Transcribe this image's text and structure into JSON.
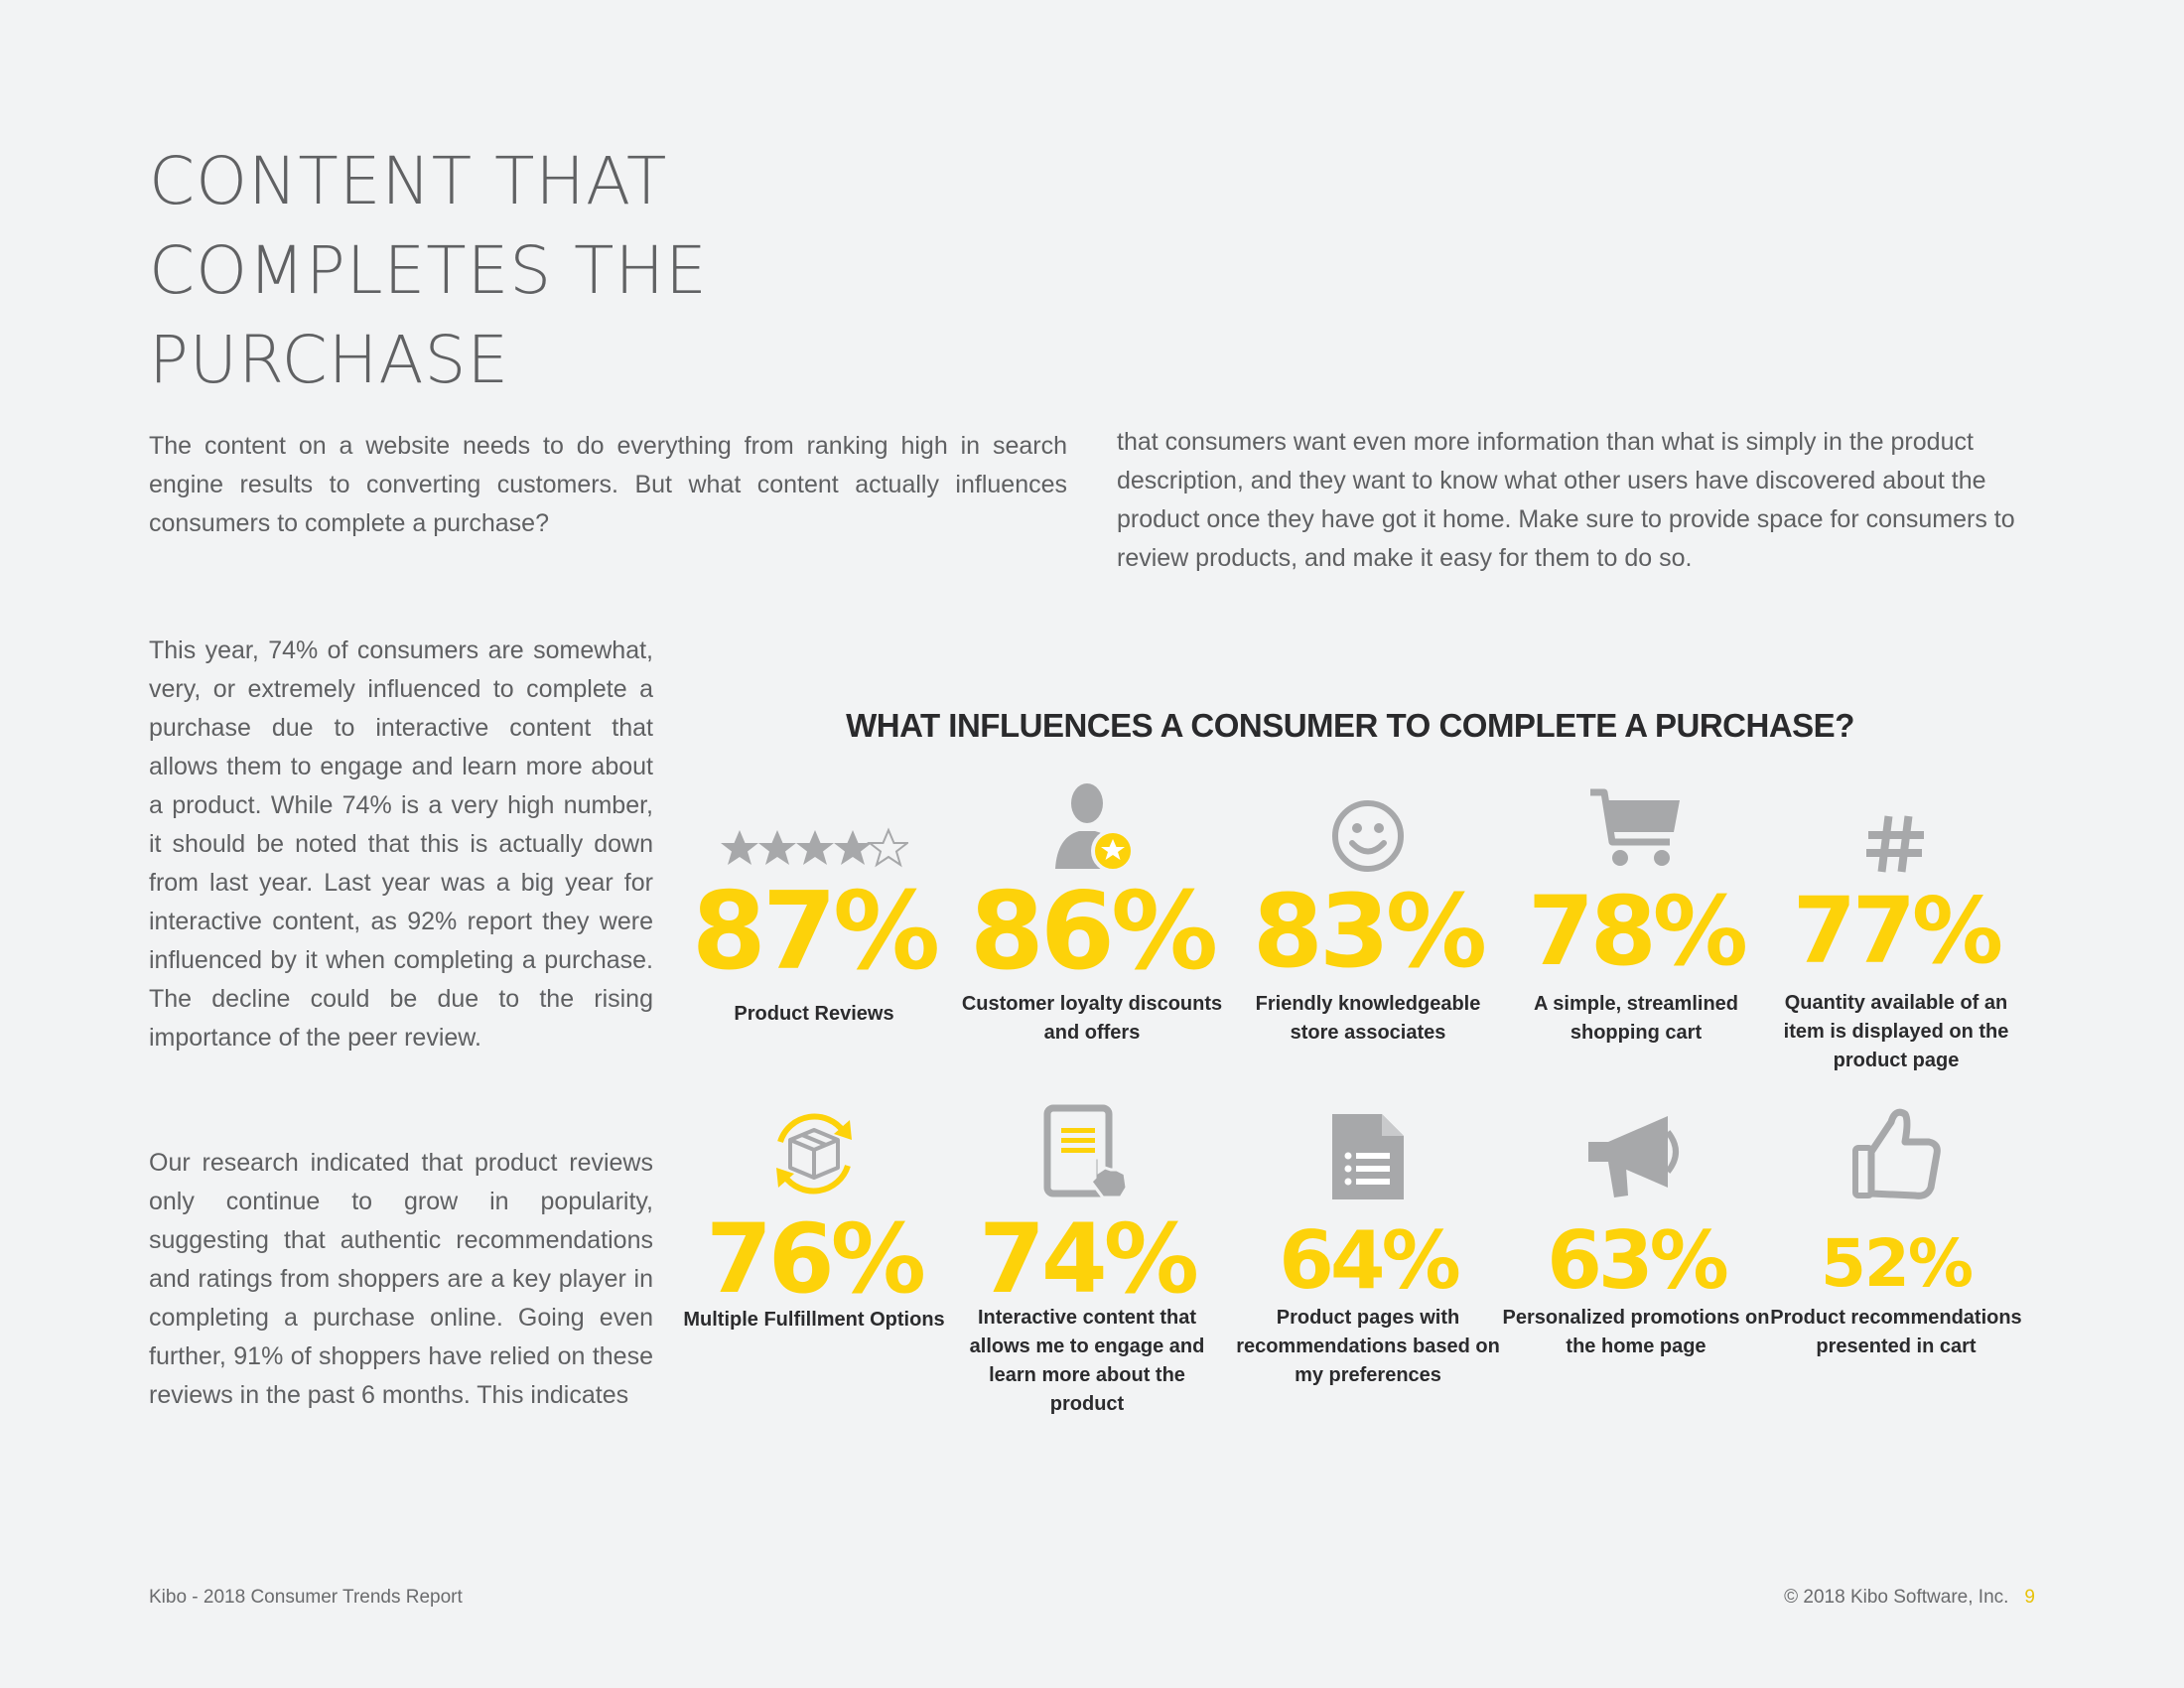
{
  "title_lines": [
    "CONTENT THAT",
    "COMPLETES THE",
    "PURCHASE"
  ],
  "intro_left": "The content on a website needs to do everything from ranking high in search engine results to converting customers. But what content actually influences consumers to complete a purchase?",
  "intro_right": "that consumers want even more information than what is simply in the product description, and they want to know what other users have discovered about the product once they have got it home. Make sure to provide space for consumers to review products, and make it easy for them to do so.",
  "body_1": "This year, 74% of consumers are somewhat, very, or extremely influenced to complete a purchase due to interactive content that allows them to engage and learn more about a product. While 74% is a very high number, it should be noted that this is actually down from last year. Last year was a big year for interactive content, as 92% report they were influenced by it when completing a purchase. The decline could be due to the rising importance of the peer review.",
  "body_2": "Our research indicated that product reviews only continue to grow in popularity, suggesting that authentic recommendations and ratings from shoppers are a key player in completing a purchase online. Going even further, 91% of shoppers have relied on these reviews in the past 6 months. This indicates",
  "chart_data": {
    "type": "table",
    "title": "WHAT INFLUENCES A CONSUMER TO COMPLETE A PURCHASE?",
    "items": [
      {
        "value": "87%",
        "label": "Product Reviews",
        "icon": "stars-rating-icon"
      },
      {
        "value": "86%",
        "label": "Customer loyalty discounts and offers",
        "icon": "user-star-icon"
      },
      {
        "value": "83%",
        "label": "Friendly knowledgeable store associates",
        "icon": "smiley-icon"
      },
      {
        "value": "78%",
        "label": "A simple, streamlined shopping cart",
        "icon": "shopping-cart-icon"
      },
      {
        "value": "77%",
        "label": "Quantity available of an item is displayed on the product page",
        "icon": "hash-icon"
      },
      {
        "value": "76%",
        "label": "Multiple Fulfillment Options",
        "icon": "box-cycle-icon"
      },
      {
        "value": "74%",
        "label": "Interactive content that allows me to engage and learn more about the product",
        "icon": "tablet-touch-icon"
      },
      {
        "value": "64%",
        "label": "Product pages with recommendations based on my preferences",
        "icon": "document-list-icon"
      },
      {
        "value": "63%",
        "label": "Personalized promotions on the home page",
        "icon": "megaphone-icon"
      },
      {
        "value": "52%",
        "label": "Product recommendations presented in cart",
        "icon": "thumbs-up-icon"
      }
    ]
  },
  "colors": {
    "accent": "#fdd20a",
    "icon_gray": "#a7a8aa",
    "text": "#5f6062"
  },
  "footer": {
    "left": "Kibo - 2018 Consumer Trends Report",
    "right": "© 2018 Kibo Software, Inc.",
    "page": "9"
  }
}
